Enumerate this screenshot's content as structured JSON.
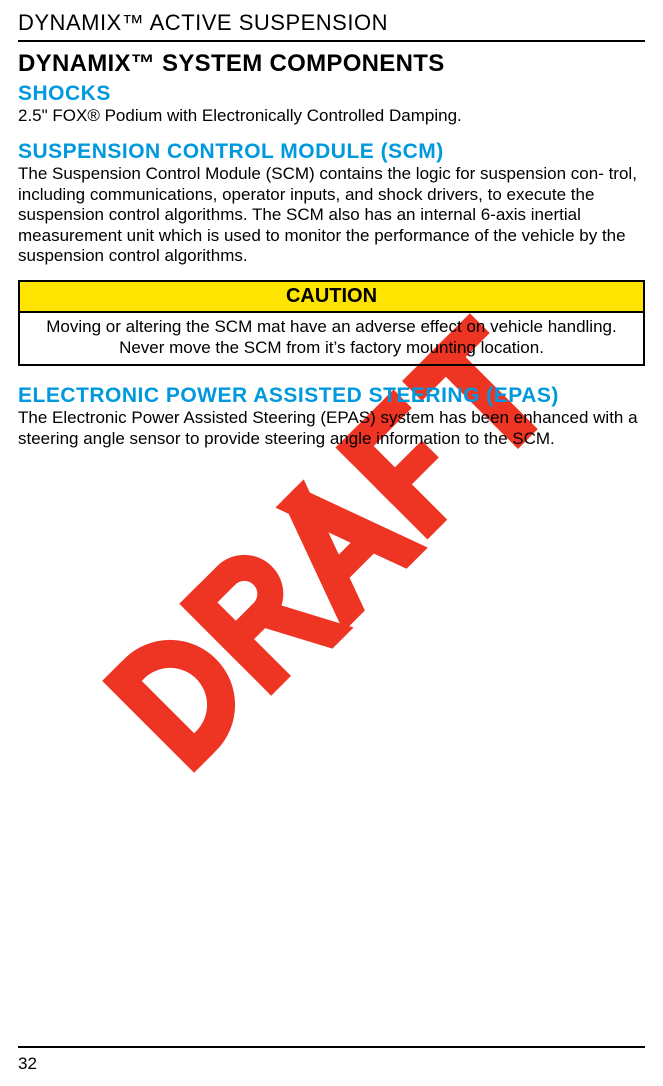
{
  "page": {
    "header": "DYNAMIX™ ACTIVE SUSPENSION",
    "title": "DYNAMIX™ SYSTEM COMPONENTS",
    "number": "32"
  },
  "sections": {
    "shocks": {
      "heading": "SHOCKS",
      "body": "2.5\" FOX® Podium with Electronically Controlled Damping."
    },
    "scm": {
      "heading": "SUSPENSION CONTROL MODULE (SCM)",
      "body": "The Suspension Control Module (SCM) contains the logic for suspension con-\ntrol, including communications, operator inputs, and shock drivers, to execute the suspension control algorithms. The SCM also has an internal 6-axis inertial measurement unit which is used to monitor the performance of the vehicle by the suspension control algorithms."
    },
    "caution": {
      "label": "CAUTION",
      "body": "Moving or altering the SCM mat have an adverse effect on vehicle handling. Never move the SCM from it’s factory mounting location."
    },
    "epas": {
      "heading": "ELECTRONIC POWER ASSISTED STEERING (EPAS)",
      "body": "The Electronic Power Assisted Steering (EPAS) system has been enhanced with a steering angle sensor to provide steering angle information to the SCM."
    }
  },
  "watermark": {
    "text": "DRAFT",
    "color": "#ee3524",
    "rotation_deg": -45
  },
  "colors": {
    "heading_blue": "#0099dd",
    "caution_bg": "#ffe400",
    "text": "#000000",
    "background": "#ffffff"
  },
  "typography": {
    "body_fontsize_pt": 12,
    "h1_fontsize_pt": 17,
    "h2_fontsize_pt": 15,
    "header_fontsize_pt": 16
  }
}
